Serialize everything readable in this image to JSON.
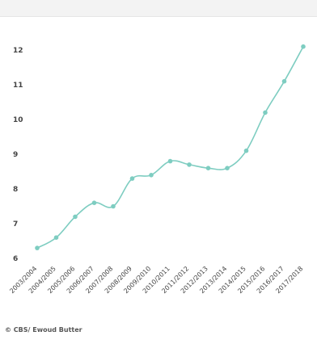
{
  "header": {
    "title": ""
  },
  "credit": "© CBS/ Ewoud Butter",
  "colors": {
    "line": "#7ecdc1",
    "marker": "#7ecdc1",
    "axis_text": "#444444",
    "background": "#ffffff"
  },
  "chart_data": {
    "type": "line",
    "title": "",
    "xlabel": "",
    "ylabel": "",
    "categories": [
      "2003/2004",
      "2004/2005",
      "2005/2006",
      "2006/2007",
      "2007/2008",
      "2008/2009",
      "2009/2010",
      "2010/2011",
      "2011/2012",
      "2012/2013",
      "2013/2014",
      "2014/2015",
      "2015/2016",
      "2016/2017",
      "2017/2018"
    ],
    "series": [
      {
        "values": [
          6.3,
          6.6,
          7.2,
          7.6,
          7.5,
          8.3,
          8.4,
          8.8,
          8.7,
          8.6,
          8.6,
          9.1,
          10.2,
          11.1,
          12.1
        ]
      }
    ],
    "ylim": [
      6,
      12
    ],
    "yticks": [
      6,
      7,
      8,
      9,
      10,
      11,
      12
    ],
    "grid": false,
    "legend": "none"
  }
}
